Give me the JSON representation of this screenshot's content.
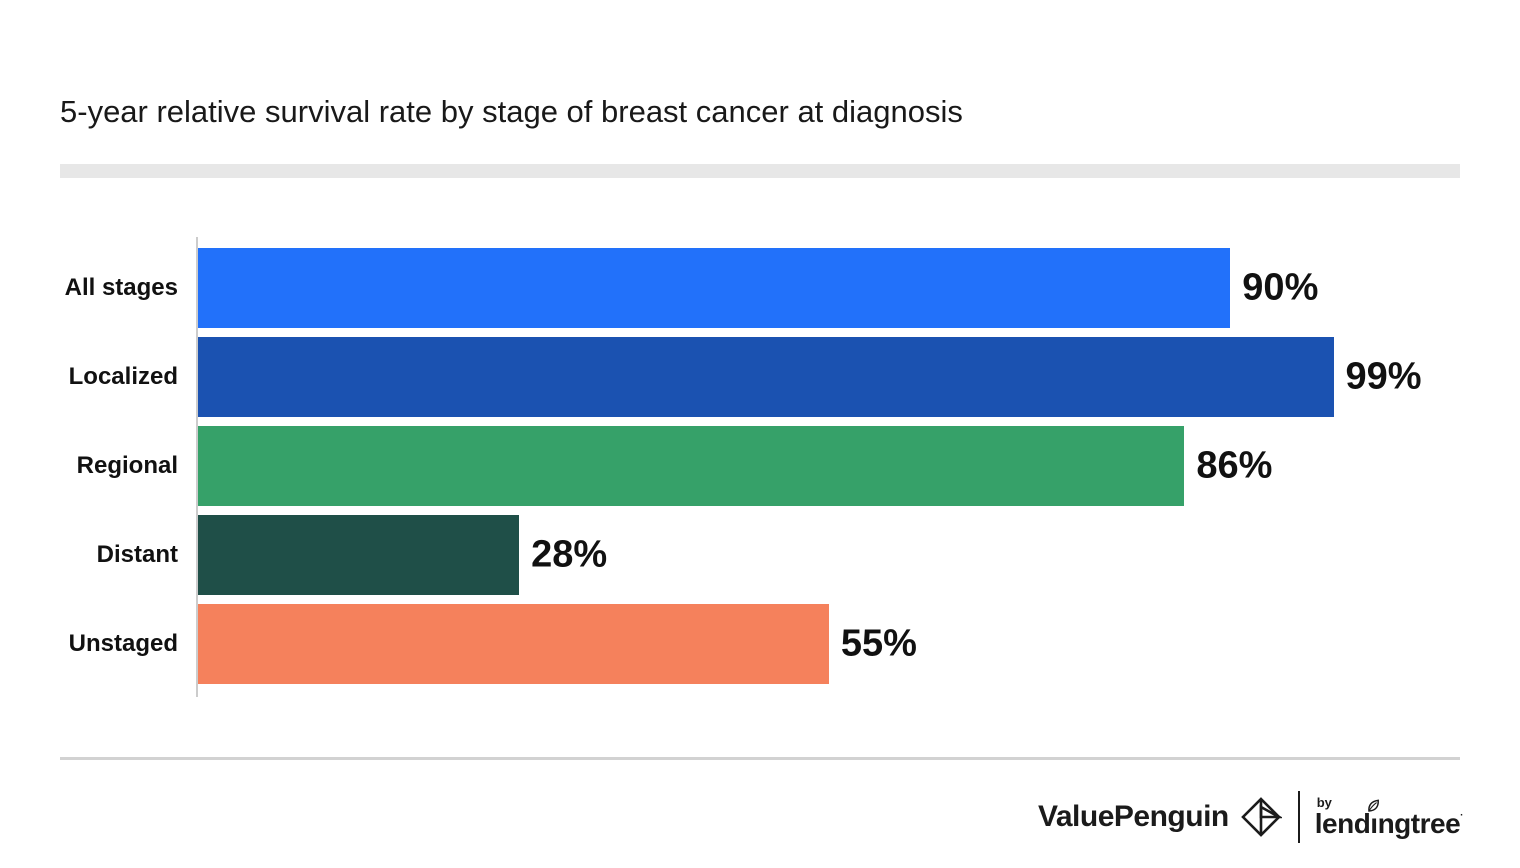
{
  "title": "5-year relative survival rate by stage of breast cancer at diagnosis",
  "chart_data": {
    "type": "bar",
    "orientation": "horizontal",
    "title": "5-year relative survival rate by stage of breast cancer at diagnosis",
    "categories": [
      "All stages",
      "Localized",
      "Regional",
      "Distant",
      "Unstaged"
    ],
    "values": [
      90,
      99,
      86,
      28,
      55
    ],
    "value_labels": [
      "90%",
      "99%",
      "86%",
      "28%",
      "55%"
    ],
    "value_suffix": "%",
    "bar_colors": [
      "#2271FA",
      "#1B52B1",
      "#36A169",
      "#1F4F48",
      "#F5815C"
    ],
    "xlabel": "",
    "ylabel": "",
    "xlim": [
      0,
      100
    ],
    "grid": false,
    "legend": false,
    "x_axis_ticks_visible": false
  },
  "branding": {
    "valuepenguin": "ValuePenguin",
    "by": "by",
    "lendingtree": "lendingtree",
    "lendingtree_parts": {
      "pre": "lend",
      "i": "ı",
      "post": "ngtree"
    },
    "trademark": "·",
    "logo_color": "#1b1b1b"
  }
}
